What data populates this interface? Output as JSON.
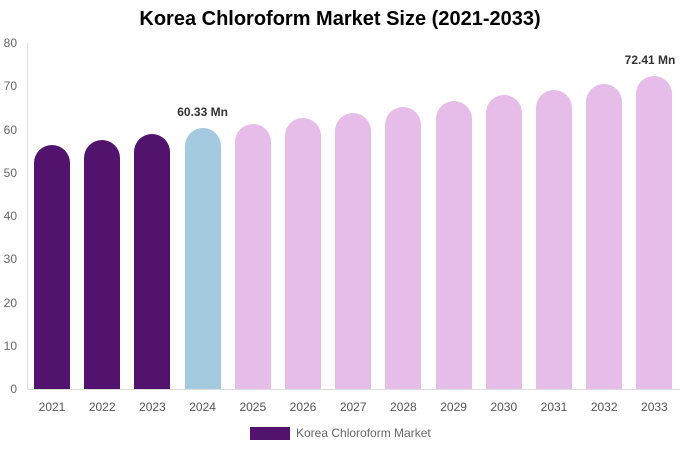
{
  "chart_data": {
    "type": "bar",
    "title": "Korea Chloroform Market Size (2021-2033)",
    "xlabel": "",
    "ylabel": "",
    "ylim": [
      0,
      80
    ],
    "yticks": [
      0,
      10,
      20,
      30,
      40,
      50,
      60,
      70,
      80
    ],
    "grid": false,
    "legend_position": "bottom",
    "categories": [
      "2021",
      "2022",
      "2023",
      "2024",
      "2025",
      "2026",
      "2027",
      "2028",
      "2029",
      "2030",
      "2031",
      "2032",
      "2033"
    ],
    "series": [
      {
        "name": "Korea Chloroform Market",
        "values": [
          56.4,
          57.6,
          59.0,
          60.33,
          61.3,
          62.7,
          63.8,
          65.2,
          66.6,
          68.0,
          69.1,
          70.5,
          72.41
        ]
      }
    ],
    "bar_colors": [
      "#52136f",
      "#52136f",
      "#52136f",
      "#a3cade",
      "#e6bde8",
      "#e6bde8",
      "#e6bde8",
      "#e6bde8",
      "#e6bde8",
      "#e6bde8",
      "#e6bde8",
      "#e6bde8",
      "#e6bde8"
    ],
    "annotations": [
      {
        "category": "2024",
        "text": "60.33 Mn"
      },
      {
        "category": "2033",
        "text": "72.41 Mn"
      }
    ]
  },
  "legend": {
    "label": "Korea Chloroform Market",
    "color": "#52136f"
  }
}
